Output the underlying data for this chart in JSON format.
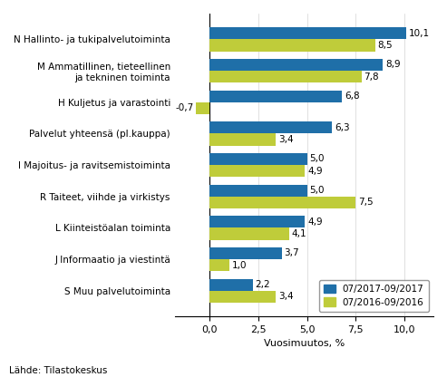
{
  "categories": [
    "N Hallinto- ja tukipalvelutoiminta",
    "M Ammatillinen, tieteellinen\nja tekninen toiminta",
    "H Kuljetus ja varastointi",
    "Palvelut yhteensä (pl.kauppa)",
    "I Majoitus- ja ravitsemistoiminta",
    "R Taiteet, viihde ja virkistys",
    "L Kiinteistöalan toiminta",
    "J Informaatio ja viestintä",
    "S Muu palvelutoiminta"
  ],
  "values_2017": [
    10.1,
    8.9,
    6.8,
    6.3,
    5.0,
    5.0,
    4.9,
    3.7,
    2.2
  ],
  "values_2016": [
    8.5,
    7.8,
    -0.7,
    3.4,
    4.9,
    7.5,
    4.1,
    1.0,
    3.4
  ],
  "color_2017": "#1F6FA8",
  "color_2016": "#BFCC3A",
  "legend_2017": "07/2017-09/2017",
  "legend_2016": "07/2016-09/2016",
  "xlabel": "Vuosimuutos, %",
  "source": "Lähde: Tilastokeskus",
  "xlim": [
    -1.8,
    11.5
  ],
  "xticks": [
    0.0,
    2.5,
    5.0,
    7.5,
    10.0
  ],
  "bar_height": 0.38,
  "label_fontsize": 7.5,
  "axis_fontsize": 8,
  "source_fontsize": 7.5
}
